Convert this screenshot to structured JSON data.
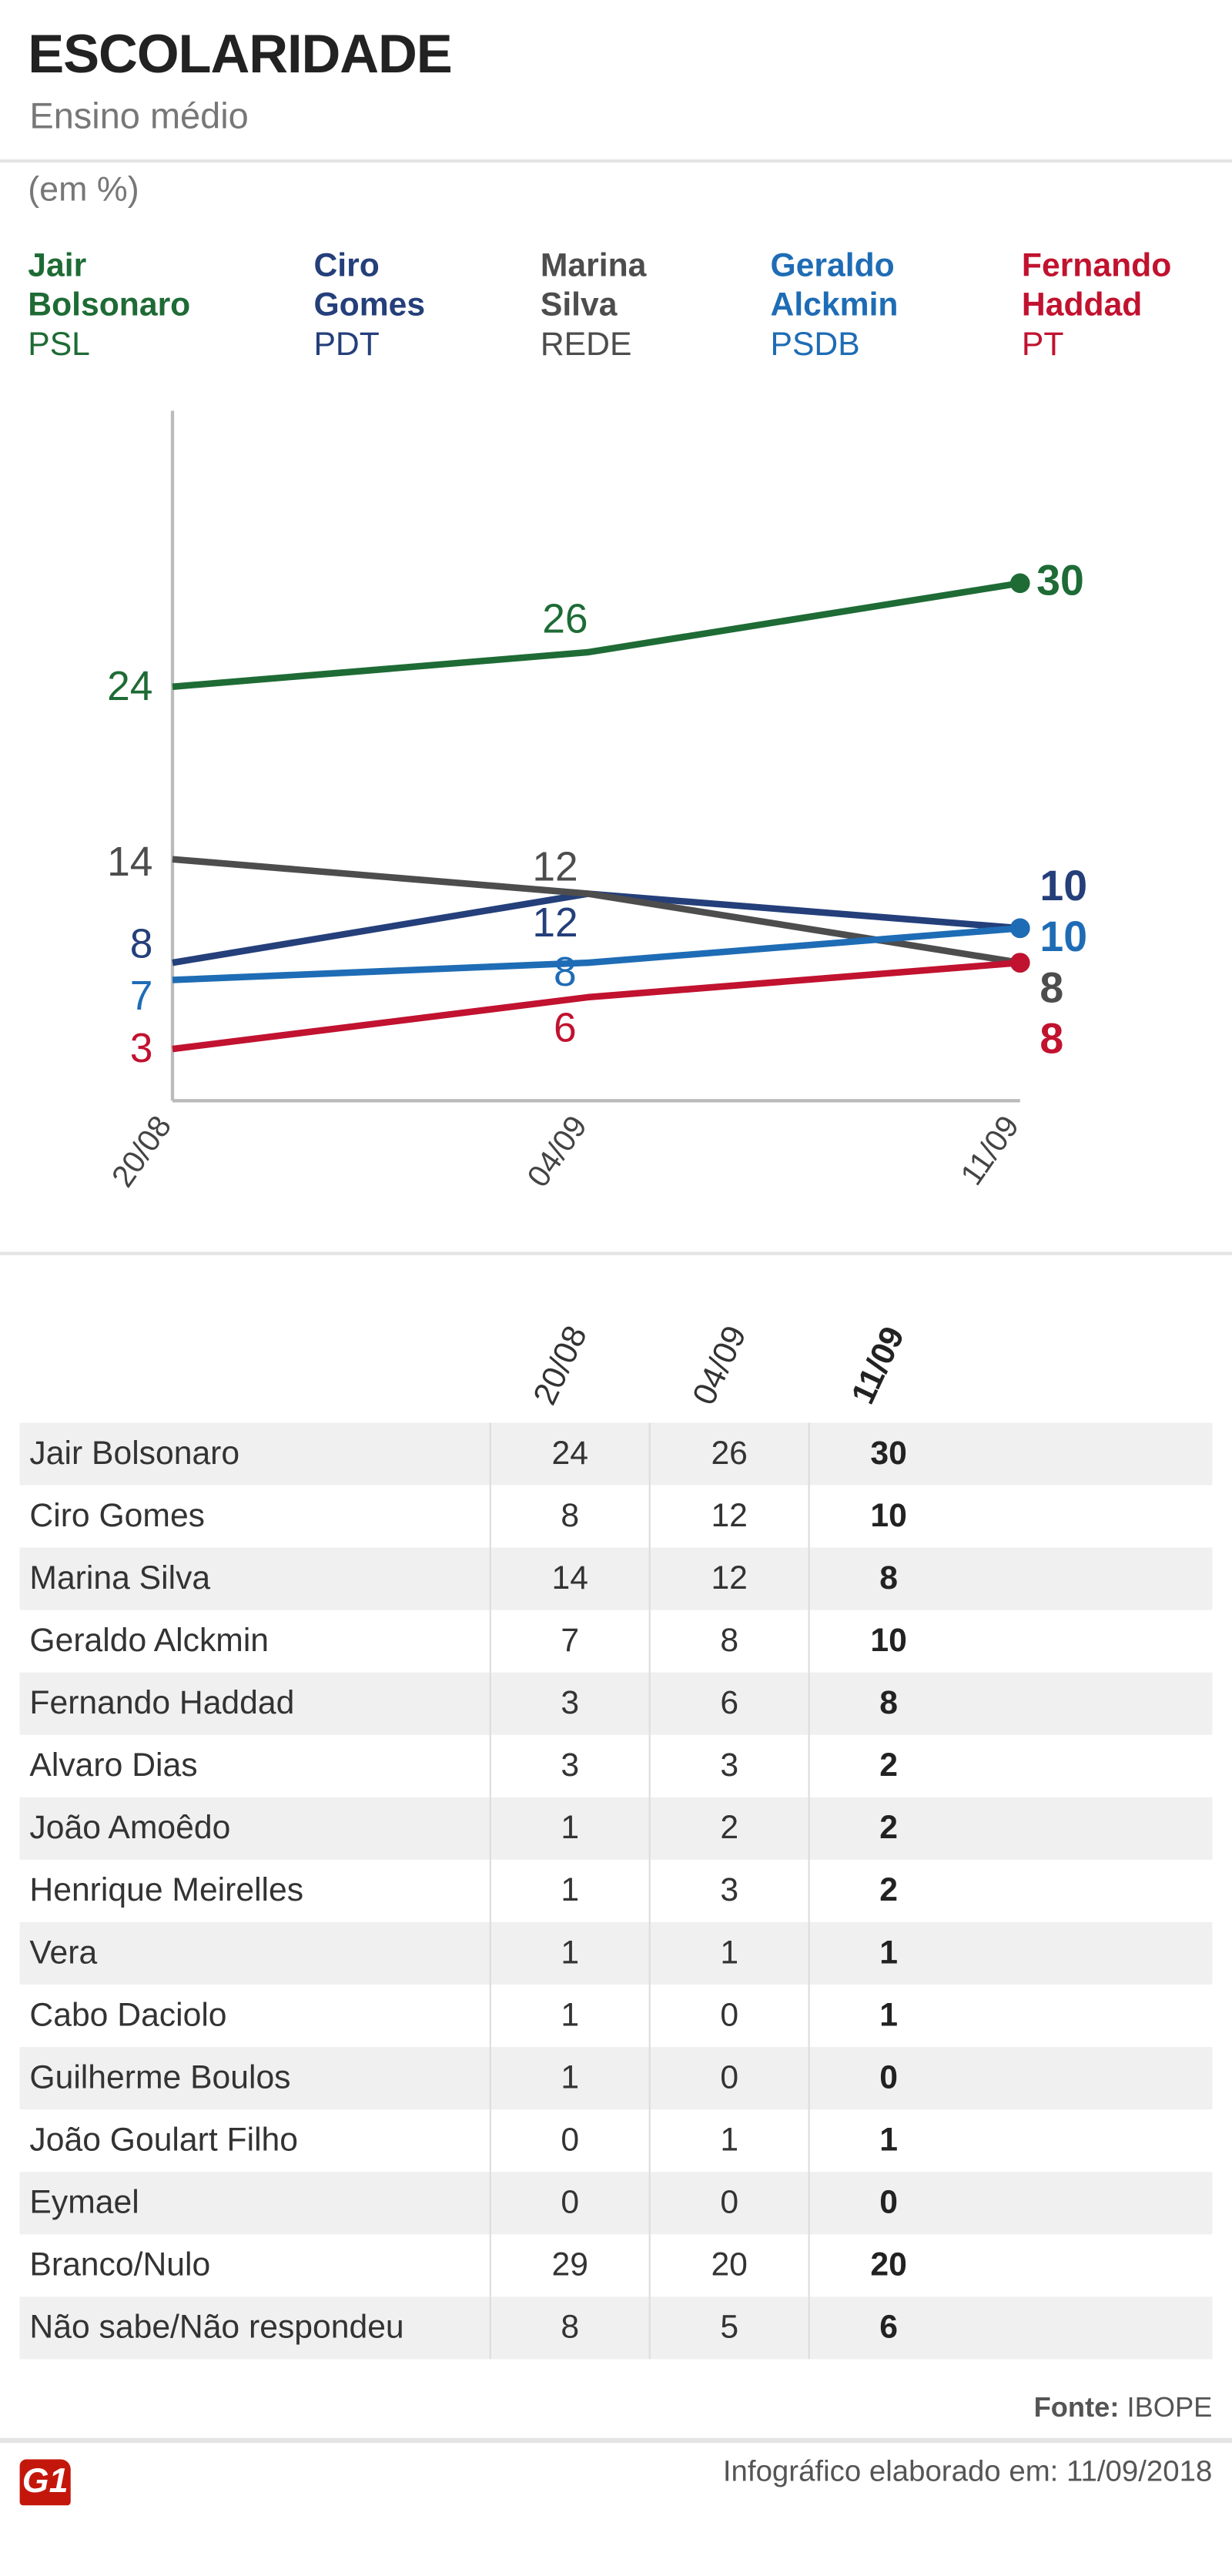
{
  "header": {
    "title": "ESCOLARIDADE",
    "subtitle": "Ensino médio",
    "unit": "(em %)"
  },
  "legend": [
    {
      "first": "Jair",
      "last": "Bolsonaro",
      "party": "PSL",
      "color": "#1e6b35"
    },
    {
      "first": "Ciro",
      "last": "Gomes",
      "party": "PDT",
      "color": "#243f7a"
    },
    {
      "first": "Marina",
      "last": "Silva",
      "party": "REDE",
      "color": "#4d4d4d"
    },
    {
      "first": "Geraldo",
      "last": "Alckmin",
      "party": "PSDB",
      "color": "#1e6cb5"
    },
    {
      "first": "Fernando",
      "last": "Haddad",
      "party": "PT",
      "color": "#c1122f"
    }
  ],
  "chart_data": {
    "type": "line",
    "x": [
      "20/08",
      "04/09",
      "11/09"
    ],
    "ylim": [
      0,
      40
    ],
    "series": [
      {
        "name": "Jair Bolsonaro",
        "color": "#1e6b35",
        "values": [
          24,
          26,
          30
        ]
      },
      {
        "name": "Ciro Gomes",
        "color": "#243f7a",
        "values": [
          8,
          12,
          10
        ]
      },
      {
        "name": "Marina Silva",
        "color": "#4d4d4d",
        "values": [
          14,
          12,
          8
        ]
      },
      {
        "name": "Geraldo Alckmin",
        "color": "#1e6cb5",
        "values": [
          7,
          8,
          10
        ]
      },
      {
        "name": "Fernando Haddad",
        "color": "#c1122f",
        "values": [
          3,
          6,
          8
        ]
      }
    ]
  },
  "table": {
    "headers": [
      "20/08",
      "04/09",
      "11/09"
    ],
    "rows": [
      {
        "name": "Jair Bolsonaro",
        "v": [
          "24",
          "26",
          "30"
        ]
      },
      {
        "name": "Ciro Gomes",
        "v": [
          "8",
          "12",
          "10"
        ]
      },
      {
        "name": "Marina Silva",
        "v": [
          "14",
          "12",
          "8"
        ]
      },
      {
        "name": "Geraldo Alckmin",
        "v": [
          "7",
          "8",
          "10"
        ]
      },
      {
        "name": "Fernando Haddad",
        "v": [
          "3",
          "6",
          "8"
        ]
      },
      {
        "name": "Alvaro Dias",
        "v": [
          "3",
          "3",
          "2"
        ]
      },
      {
        "name": "João Amoêdo",
        "v": [
          "1",
          "2",
          "2"
        ]
      },
      {
        "name": "Henrique Meirelles",
        "v": [
          "1",
          "3",
          "2"
        ]
      },
      {
        "name": "Vera",
        "v": [
          "1",
          "1",
          "1"
        ]
      },
      {
        "name": "Cabo Daciolo",
        "v": [
          "1",
          "0",
          "1"
        ]
      },
      {
        "name": "Guilherme Boulos",
        "v": [
          "1",
          "0",
          "0"
        ]
      },
      {
        "name": "João Goulart Filho",
        "v": [
          "0",
          "1",
          "1"
        ]
      },
      {
        "name": "Eymael",
        "v": [
          "0",
          "0",
          "0"
        ]
      },
      {
        "name": "Branco/Nulo",
        "v": [
          "29",
          "20",
          "20"
        ]
      },
      {
        "name": "Não sabe/Não respondeu",
        "v": [
          "8",
          "5",
          "6"
        ]
      }
    ]
  },
  "footer": {
    "source_label": "Fonte:",
    "source": "IBOPE",
    "made": "Infográfico elaborado em: 11/09/2018",
    "logo": "G1"
  }
}
